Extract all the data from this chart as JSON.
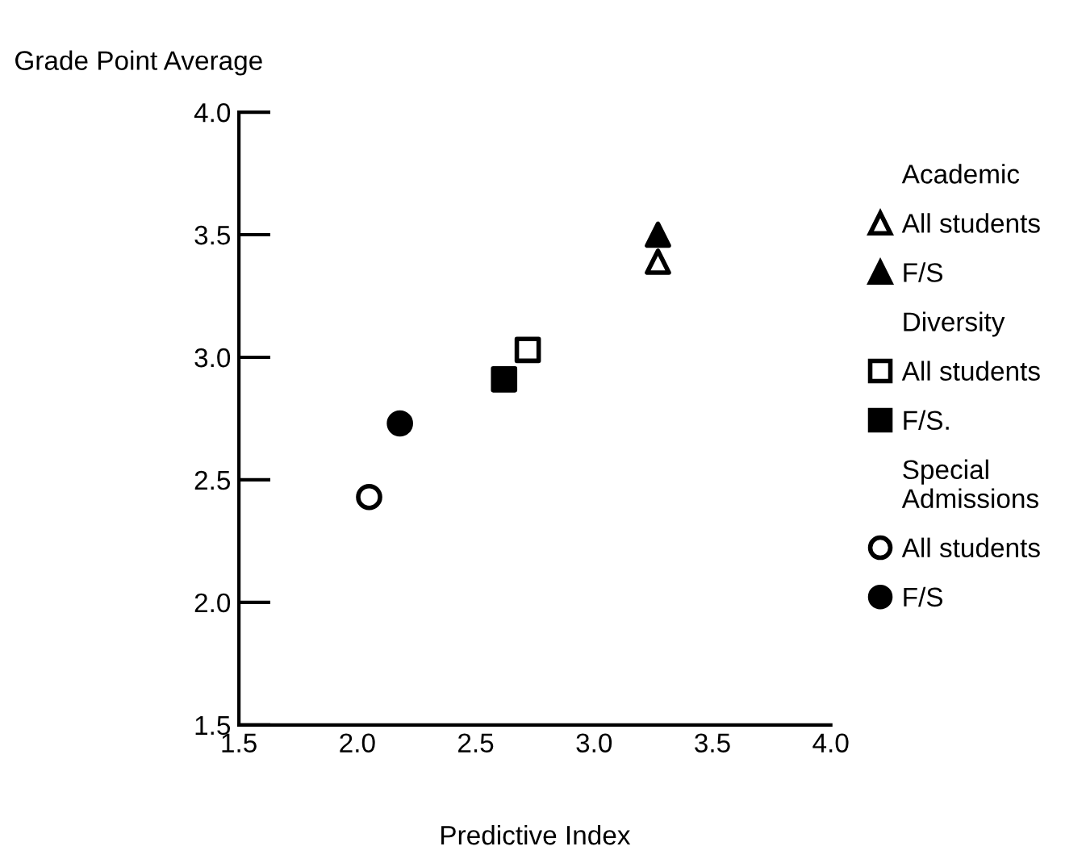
{
  "chart_data": {
    "type": "scatter",
    "xlabel": "Predictive Index",
    "ylabel": "Grade Point Average",
    "xlim": [
      1.5,
      4.0
    ],
    "ylim": [
      1.5,
      4.0
    ],
    "xticks": [
      1.5,
      {
        "value": 2,
        "label": "2.0"
      },
      2.5,
      {
        "value": 3,
        "label": "3.0"
      },
      3.5,
      {
        "value": 4,
        "label": "4.0"
      }
    ],
    "yticks": [
      1.5,
      {
        "value": 2,
        "label": "2.0"
      },
      2.5,
      {
        "value": 3,
        "label": "3.0"
      },
      3.5,
      {
        "value": 4,
        "label": "4.0"
      }
    ],
    "grid": false,
    "legend": "right",
    "annotations": [
      "Academic",
      "Diversity",
      "Special\nAdmissions"
    ],
    "series": [
      {
        "name": "All students",
        "marker": "triangle",
        "color": "#ffffff",
        "x": [
          3.27
        ],
        "values": [
          3.39
        ]
      },
      {
        "name": "F/S",
        "marker": "triangle",
        "color": "#000000",
        "x": [
          3.27
        ],
        "values": [
          3.5
        ]
      },
      {
        "name": "All students",
        "marker": "square",
        "color": "#ffffff",
        "x": [
          2.72
        ],
        "values": [
          3.03
        ]
      },
      {
        "name": "F/S.",
        "marker": "square",
        "color": "#000000",
        "x": [
          2.62
        ],
        "values": [
          2.91
        ]
      },
      {
        "name": "All students",
        "marker": "circle",
        "color": "#ffffff",
        "x": [
          2.05
        ],
        "values": [
          2.43
        ]
      },
      {
        "name": "F/S",
        "marker": "circle",
        "color": "#000000",
        "x": [
          2.18
        ],
        "values": [
          2.73
        ]
      }
    ]
  }
}
